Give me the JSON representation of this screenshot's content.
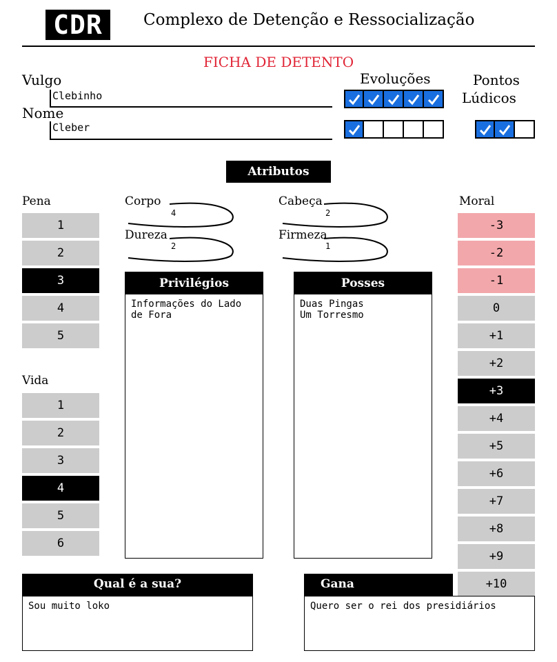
{
  "header": {
    "logo_text": "CDR",
    "title": "Complexo de Detenção e Ressocialização",
    "sheet_title": "FICHA DE DETENTO"
  },
  "identity": {
    "vulgo_label": "Vulgo",
    "vulgo_value": "Clebinho",
    "nome_label": "Nome",
    "nome_value": "Cleber"
  },
  "evolucoes": {
    "label": "Evoluções",
    "row1": [
      true,
      true,
      true,
      true,
      true
    ],
    "row2": [
      true,
      false,
      false,
      false,
      false
    ]
  },
  "pontos_ludicos": {
    "label_line1": "Pontos",
    "label_line2": "Lúdicos",
    "boxes": [
      true,
      true,
      false
    ]
  },
  "atributos": {
    "label": "Atributos",
    "corpo": {
      "label": "Corpo",
      "value": "4"
    },
    "dureza": {
      "label": "Dureza",
      "value": "2"
    },
    "cabeca": {
      "label": "Cabeça",
      "value": "2"
    },
    "firmeza": {
      "label": "Firmeza",
      "value": "1"
    }
  },
  "pena": {
    "label": "Pena",
    "values": [
      "1",
      "2",
      "3",
      "4",
      "5"
    ],
    "selected": "3"
  },
  "vida": {
    "label": "Vida",
    "values": [
      "1",
      "2",
      "3",
      "4",
      "5",
      "6"
    ],
    "selected": "4"
  },
  "moral": {
    "label": "Moral",
    "values": [
      "-3",
      "-2",
      "-1",
      "0",
      "+1",
      "+2",
      "+3",
      "+4",
      "+5",
      "+6",
      "+7",
      "+8",
      "+9",
      "+10"
    ],
    "negative": [
      "-3",
      "-2",
      "-1"
    ],
    "selected": "+3"
  },
  "privilegios": {
    "label": "Privilégios",
    "text_line1": "Informações do Lado",
    "text_line2": "de Fora"
  },
  "posses": {
    "label": "Posses",
    "text_line1": "Duas Pingas",
    "text_line2": "Um Torresmo"
  },
  "qual_e_a_sua": {
    "label": "Qual é a sua?",
    "text": "Sou muito loko"
  },
  "gana": {
    "label": "Gana",
    "text": "Quero ser o rei dos presidiários"
  },
  "colors": {
    "check_blue": "#1a6fe0",
    "negative_pink": "#f2a7ab",
    "track_gray": "#cccccc",
    "title_red": "#e02435"
  }
}
